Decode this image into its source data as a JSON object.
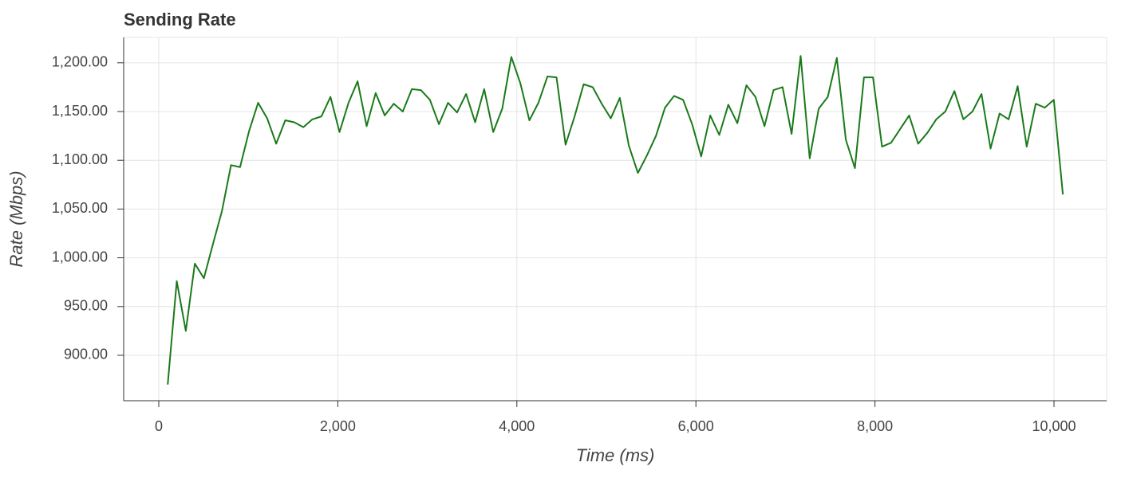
{
  "chart_data": {
    "type": "line",
    "title": "Sending Rate",
    "x_label": "Time (ms)",
    "y_label": "Rate (Mbps)",
    "xlim": [
      -392,
      10588
    ],
    "ylim": [
      853.4,
      1226
    ],
    "xticks": [
      0,
      {
        "value": 2000,
        "label": "2,000"
      },
      {
        "value": 4000,
        "label": "4,000"
      },
      {
        "value": 6000,
        "label": "6,000"
      },
      {
        "value": 8000,
        "label": "8,000"
      },
      {
        "value": 10000,
        "label": "10,000"
      }
    ],
    "yticks": [
      {
        "value": 900,
        "label": "900.00"
      },
      {
        "value": 950,
        "label": "950.00"
      },
      {
        "value": 1000,
        "label": "1,000.00"
      },
      {
        "value": 1050,
        "label": "1,050.00"
      },
      {
        "value": 1100,
        "label": "1,100.00"
      },
      {
        "value": 1150,
        "label": "1,150.00"
      },
      {
        "value": 1200,
        "label": "1,200.00"
      }
    ],
    "grid": true,
    "x": [
      100,
      201,
      302,
      403,
      504,
      605,
      706,
      807,
      908,
      1009,
      1110,
      1211,
      1312,
      1413,
      1514,
      1615,
      1716,
      1817,
      1918,
      2019,
      2120,
      2221,
      2322,
      2423,
      2524,
      2625,
      2726,
      2827,
      2928,
      3029,
      3130,
      3231,
      3332,
      3433,
      3534,
      3635,
      3736,
      3837,
      3938,
      4039,
      4140,
      4241,
      4342,
      4443,
      4544,
      4645,
      4746,
      4847,
      4948,
      5049,
      5150,
      5251,
      5352,
      5453,
      5554,
      5655,
      5756,
      5857,
      5958,
      6059,
      6160,
      6261,
      6362,
      6463,
      6564,
      6665,
      6766,
      6867,
      6968,
      7069,
      7170,
      7271,
      7372,
      7473,
      7574,
      7675,
      7776,
      7877,
      7978,
      8079,
      8180,
      8281,
      8382,
      8483,
      8584,
      8685,
      8786,
      8887,
      8988,
      9089,
      9190,
      9291,
      9392,
      9493,
      9594,
      9695,
      9796,
      9897,
      9998,
      10099
    ],
    "series": [
      {
        "name": "Sending Rate",
        "color": "#1a7a1a",
        "values": [
          870,
          976,
          925,
          994,
          979,
          1014,
          1048,
          1095,
          1093,
          1130,
          1159,
          1143,
          1117,
          1141,
          1139,
          1134,
          1142,
          1145,
          1165,
          1129,
          1159,
          1181,
          1135,
          1169,
          1146,
          1158,
          1150,
          1173,
          1172,
          1162,
          1137,
          1159,
          1149,
          1168,
          1139,
          1173,
          1129,
          1153,
          1206,
          1179,
          1141,
          1159,
          1186,
          1185,
          1116,
          1145,
          1178,
          1175,
          1158,
          1143,
          1164,
          1115,
          1087,
          1105,
          1125,
          1154,
          1166,
          1162,
          1137,
          1104,
          1146,
          1126,
          1157,
          1138,
          1177,
          1165,
          1135,
          1172,
          1175,
          1127,
          1207,
          1102,
          1153,
          1165,
          1205,
          1121,
          1092,
          1185,
          1185,
          1114,
          1118,
          1132,
          1146,
          1117,
          1128,
          1142,
          1150,
          1171,
          1142,
          1150,
          1168,
          1112,
          1148,
          1142,
          1176,
          1114,
          1158,
          1154,
          1162,
          1065
        ]
      }
    ]
  }
}
